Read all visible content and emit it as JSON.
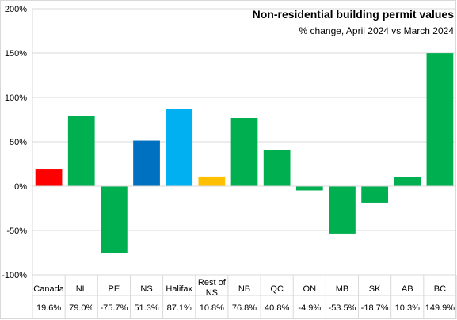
{
  "chart_data": {
    "type": "bar",
    "title": "Non-residential  building  permit values",
    "subtitle": "% change, April 2024 vs March 2024",
    "xlabel": "",
    "ylabel": "",
    "ylim": [
      -100,
      200
    ],
    "y_ticks": [
      -100,
      -50,
      0,
      50,
      100,
      150,
      200
    ],
    "y_tick_labels": [
      "-100%",
      "-50%",
      "0%",
      "50%",
      "100%",
      "150%",
      "200%"
    ],
    "grid": "horizontal",
    "legend": "none",
    "categories": [
      [
        "Canada"
      ],
      [
        "NL"
      ],
      [
        "PE"
      ],
      [
        "NS"
      ],
      [
        "Halifax"
      ],
      [
        "Rest of",
        "NS"
      ],
      [
        "NB"
      ],
      [
        "QC"
      ],
      [
        "ON"
      ],
      [
        "MB"
      ],
      [
        "SK"
      ],
      [
        "AB"
      ],
      [
        "BC"
      ]
    ],
    "values": [
      19.6,
      79.0,
      -75.7,
      51.3,
      87.1,
      10.8,
      76.8,
      40.8,
      -4.9,
      -53.5,
      -18.7,
      10.3,
      149.9
    ],
    "value_labels": [
      "19.6%",
      "79.0%",
      "-75.7%",
      "51.3%",
      "87.1%",
      "10.8%",
      "76.8%",
      "40.8%",
      "-4.9%",
      "-53.5%",
      "-18.7%",
      "10.3%",
      "149.9%"
    ],
    "colors": [
      "#ff0000",
      "#00b050",
      "#00b050",
      "#0070c0",
      "#00b0f0",
      "#ffc000",
      "#00b050",
      "#00b050",
      "#00b050",
      "#00b050",
      "#00b050",
      "#00b050",
      "#00b050"
    ]
  }
}
